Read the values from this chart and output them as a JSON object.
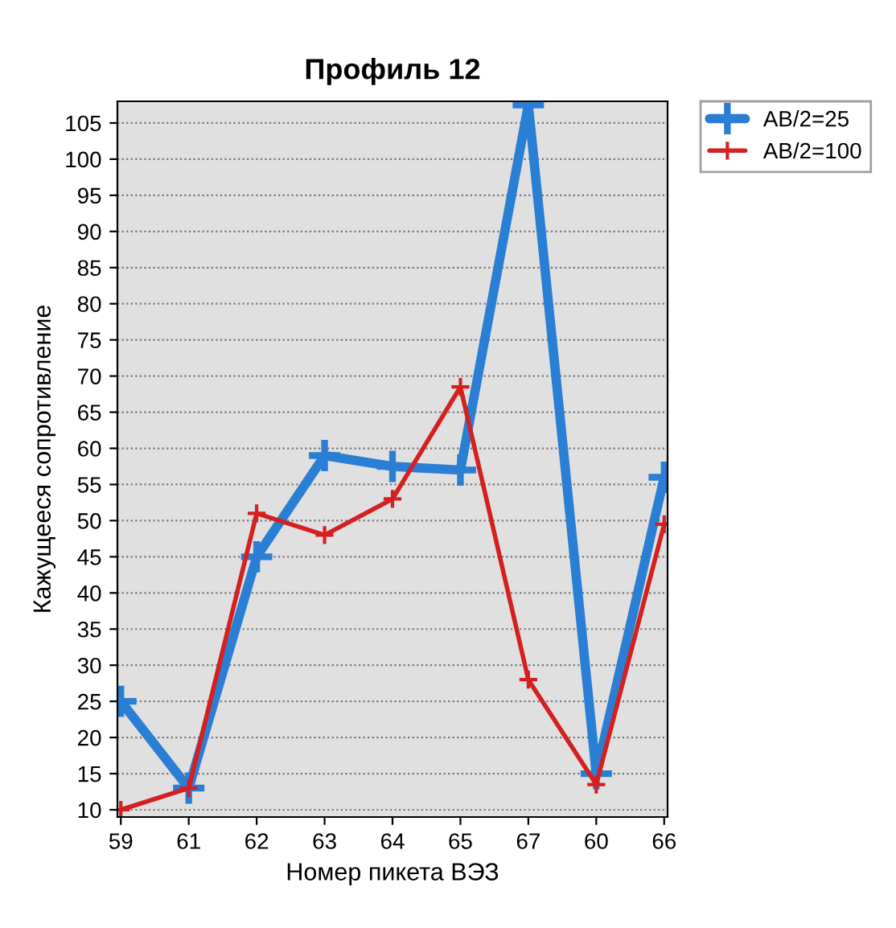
{
  "chart_data": {
    "type": "line",
    "title": "Профиль 12",
    "xlabel": "Номер пикета ВЭЗ",
    "ylabel": "Кажущееся сопротивление",
    "categories": [
      "59",
      "61",
      "62",
      "63",
      "64",
      "65",
      "67",
      "60",
      "66"
    ],
    "series": [
      {
        "name": "AB/2=25",
        "color": "#2a7fd4",
        "values": [
          25,
          13,
          45,
          59,
          57.5,
          57,
          107.5,
          15,
          56
        ]
      },
      {
        "name": "AB/2=100",
        "color": "#d42020",
        "values": [
          10,
          13,
          51,
          48,
          53,
          68.5,
          28,
          13.5,
          49.5
        ]
      }
    ],
    "ylim": [
      9,
      108
    ],
    "yticks": [
      10,
      15,
      20,
      25,
      30,
      35,
      40,
      45,
      50,
      55,
      60,
      65,
      70,
      75,
      80,
      85,
      90,
      95,
      100,
      105
    ],
    "grid": "y",
    "legend": "top right",
    "marker": "cross",
    "line_style": "solid"
  }
}
